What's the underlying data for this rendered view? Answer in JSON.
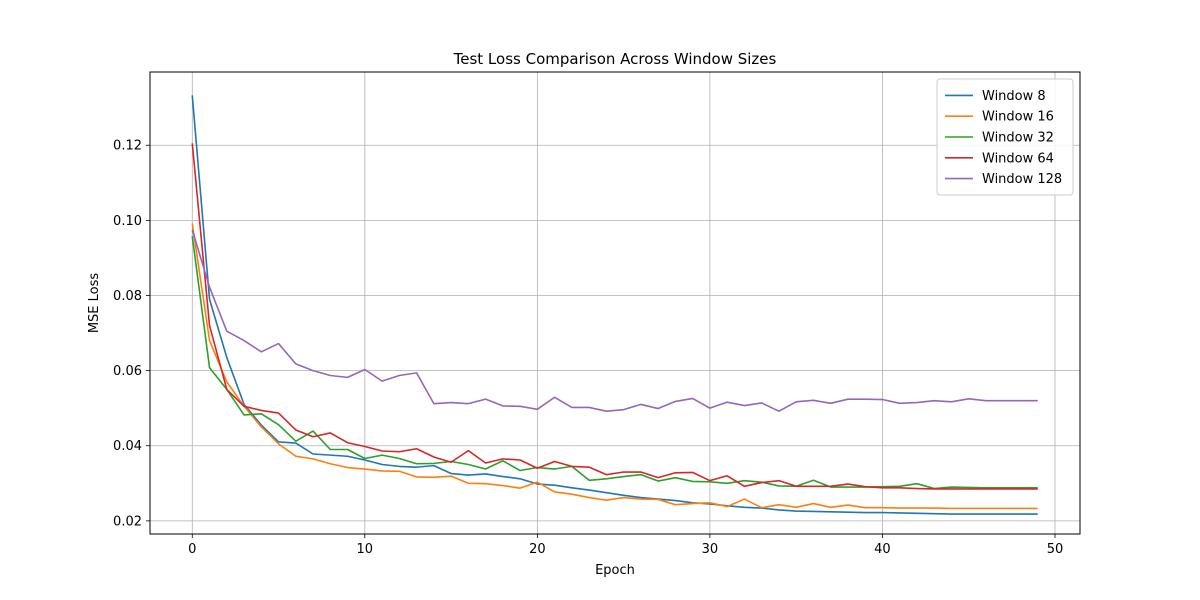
{
  "chart_data": {
    "type": "line",
    "title": "Test Loss Comparison Across Window Sizes",
    "xlabel": "Epoch",
    "ylabel": "MSE Loss",
    "xlim": [
      -2.45,
      51.45
    ],
    "ylim": [
      0.0165,
      0.1395
    ],
    "xticks": [
      0,
      10,
      20,
      30,
      40,
      50
    ],
    "yticks": [
      0.02,
      0.04,
      0.06,
      0.08,
      0.1,
      0.12
    ],
    "ytick_labels": [
      "0.02",
      "0.04",
      "0.06",
      "0.08",
      "0.10",
      "0.12"
    ],
    "grid": true,
    "legend_position": "top-right",
    "x": [
      0,
      1,
      2,
      3,
      4,
      5,
      6,
      7,
      8,
      9,
      10,
      11,
      12,
      13,
      14,
      15,
      16,
      17,
      18,
      19,
      20,
      21,
      22,
      23,
      24,
      25,
      26,
      27,
      28,
      29,
      30,
      31,
      32,
      33,
      34,
      35,
      36,
      37,
      38,
      39,
      40,
      41,
      42,
      43,
      44,
      45,
      46,
      47,
      48,
      49
    ],
    "series": [
      {
        "name": "Window 8",
        "color": "#1f77b4",
        "values": [
          0.1333,
          0.079,
          0.0635,
          0.051,
          0.0455,
          0.041,
          0.0407,
          0.0378,
          0.0375,
          0.0372,
          0.0362,
          0.035,
          0.0345,
          0.0343,
          0.0347,
          0.0326,
          0.0322,
          0.0325,
          0.0318,
          0.0312,
          0.0298,
          0.0295,
          0.0288,
          0.0282,
          0.0275,
          0.0268,
          0.0262,
          0.0258,
          0.0254,
          0.0248,
          0.0245,
          0.024,
          0.0236,
          0.0234,
          0.0229,
          0.0226,
          0.0225,
          0.0224,
          0.0223,
          0.0222,
          0.0222,
          0.0221,
          0.022,
          0.0219,
          0.0218,
          0.0218,
          0.0218,
          0.0218,
          0.0218,
          0.0218
        ]
      },
      {
        "name": "Window 16",
        "color": "#ff7f0e",
        "values": [
          0.0992,
          0.068,
          0.057,
          0.0505,
          0.045,
          0.0405,
          0.0372,
          0.0365,
          0.0352,
          0.0342,
          0.0338,
          0.0333,
          0.0332,
          0.0317,
          0.0316,
          0.0319,
          0.03,
          0.0299,
          0.0294,
          0.0287,
          0.0303,
          0.0277,
          0.0271,
          0.0262,
          0.0255,
          0.0262,
          0.0258,
          0.0257,
          0.0243,
          0.0246,
          0.0248,
          0.0238,
          0.0258,
          0.0235,
          0.0243,
          0.0236,
          0.0246,
          0.0236,
          0.0242,
          0.0235,
          0.0235,
          0.0234,
          0.0234,
          0.0234,
          0.0233,
          0.0233,
          0.0233,
          0.0233,
          0.0233,
          0.0233
        ]
      },
      {
        "name": "Window 32",
        "color": "#2ca02c",
        "values": [
          0.0958,
          0.0608,
          0.055,
          0.0482,
          0.0485,
          0.0456,
          0.0412,
          0.0439,
          0.039,
          0.039,
          0.0366,
          0.0375,
          0.0366,
          0.0352,
          0.0353,
          0.0358,
          0.035,
          0.0338,
          0.036,
          0.0334,
          0.0342,
          0.0338,
          0.0345,
          0.0308,
          0.0312,
          0.0318,
          0.0323,
          0.0306,
          0.0315,
          0.0305,
          0.0304,
          0.03,
          0.0307,
          0.0303,
          0.0293,
          0.0292,
          0.0308,
          0.029,
          0.029,
          0.029,
          0.0291,
          0.0292,
          0.0299,
          0.0286,
          0.029,
          0.0289,
          0.0288,
          0.0288,
          0.0288,
          0.0288
        ]
      },
      {
        "name": "Window 64",
        "color": "#d62728",
        "values": [
          0.1205,
          0.072,
          0.055,
          0.0505,
          0.0494,
          0.0487,
          0.0442,
          0.0424,
          0.0434,
          0.0408,
          0.0398,
          0.0386,
          0.0384,
          0.0392,
          0.037,
          0.0356,
          0.0387,
          0.0354,
          0.0365,
          0.0362,
          0.034,
          0.0358,
          0.0345,
          0.0343,
          0.0323,
          0.033,
          0.033,
          0.0315,
          0.0328,
          0.0329,
          0.0307,
          0.032,
          0.0292,
          0.0302,
          0.0307,
          0.0292,
          0.0292,
          0.0292,
          0.0298,
          0.0291,
          0.0288,
          0.0288,
          0.0286,
          0.0285,
          0.0285,
          0.0285,
          0.0285,
          0.0285,
          0.0285,
          0.0285
        ]
      },
      {
        "name": "Window 128",
        "color": "#9467bd",
        "values": [
          0.0975,
          0.0822,
          0.0705,
          0.068,
          0.065,
          0.0672,
          0.0618,
          0.06,
          0.0587,
          0.0582,
          0.0603,
          0.0572,
          0.0587,
          0.0594,
          0.0512,
          0.0515,
          0.0512,
          0.0524,
          0.0506,
          0.0505,
          0.0497,
          0.0529,
          0.0502,
          0.0502,
          0.0492,
          0.0496,
          0.051,
          0.0499,
          0.0518,
          0.0526,
          0.05,
          0.0516,
          0.0507,
          0.0514,
          0.0492,
          0.0517,
          0.0521,
          0.0513,
          0.0524,
          0.0524,
          0.0523,
          0.0513,
          0.0515,
          0.052,
          0.0517,
          0.0525,
          0.052,
          0.052,
          0.052,
          0.052
        ]
      }
    ]
  }
}
